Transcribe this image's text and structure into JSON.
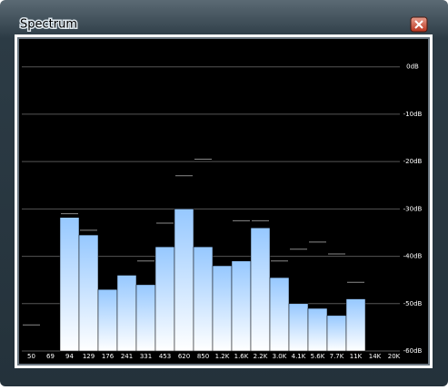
{
  "window": {
    "title": "Spectrum"
  },
  "chart_data": {
    "type": "bar",
    "categories": [
      "50",
      "69",
      "94",
      "129",
      "176",
      "241",
      "331",
      "453",
      "620",
      "850",
      "1.2K",
      "1.6K",
      "2.2K",
      "3.0K",
      "4.1K",
      "5.6K",
      "7.7K",
      "11K",
      "14K",
      "20K"
    ],
    "values": [
      null,
      null,
      -31.8,
      -35.5,
      -47,
      -44,
      -46,
      -38,
      -30,
      -38,
      -42,
      -41,
      -34,
      -44.5,
      -50,
      -51,
      -52.5,
      -49,
      null,
      null
    ],
    "peak_values": [
      -54.5,
      null,
      -31,
      -34.5,
      null,
      null,
      -41,
      -33,
      -23,
      -19.5,
      null,
      -32.5,
      -32.5,
      -41,
      -38.5,
      -37,
      -39.5,
      -45.5,
      null,
      null
    ],
    "color": "#96c8ff",
    "peak_color": "#8a8a8a",
    "ylim": [
      -60,
      5.5
    ],
    "yticks": [
      {
        "value": 0,
        "label": "0dB"
      },
      {
        "value": -10,
        "label": "-10dB"
      },
      {
        "value": -20,
        "label": "-20dB"
      },
      {
        "value": -30,
        "label": "-30dB"
      },
      {
        "value": -40,
        "label": "-40dB"
      },
      {
        "value": -50,
        "label": "-50dB"
      },
      {
        "value": -60,
        "label": "-60dB"
      }
    ],
    "grid": true
  }
}
